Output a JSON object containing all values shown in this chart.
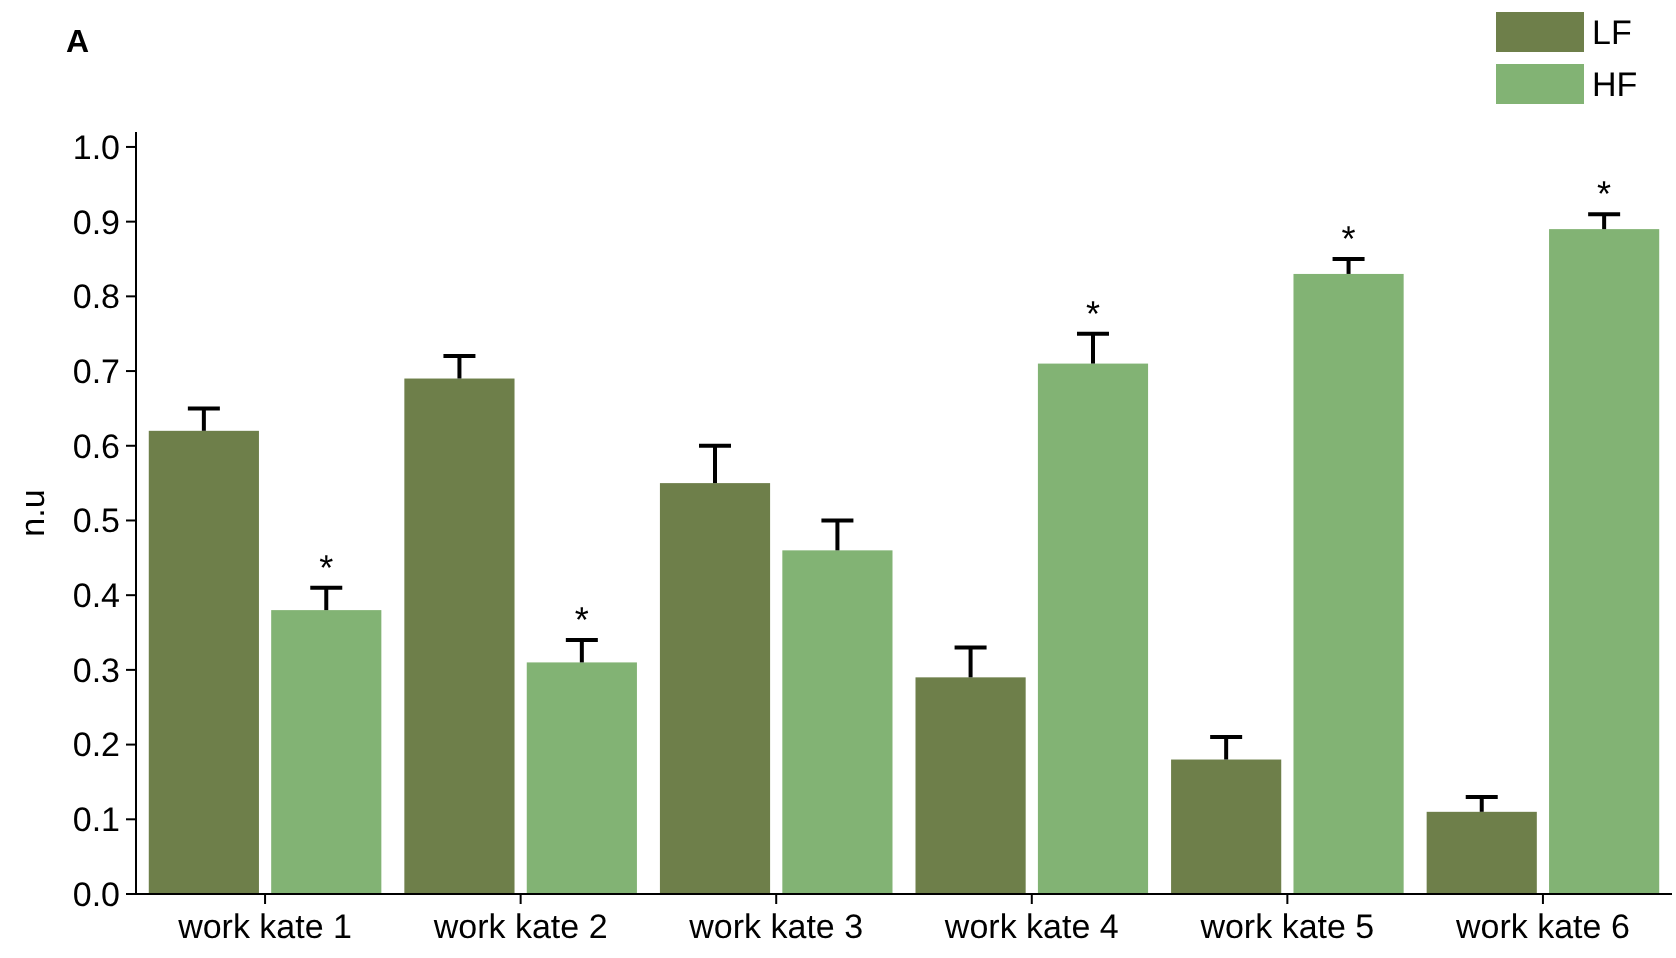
{
  "chart_data": {
    "type": "bar",
    "title": "A",
    "ylabel": "n.u",
    "categories": [
      "work kate 1",
      "work kate 2",
      "work kate 3",
      "work kate 4",
      "work kate 5",
      "work kate 6"
    ],
    "series": [
      {
        "name": "LF",
        "color": "#6e7f4a",
        "values": [
          0.62,
          0.69,
          0.55,
          0.29,
          0.18,
          0.11
        ],
        "errors": [
          0.03,
          0.03,
          0.05,
          0.04,
          0.03,
          0.02
        ]
      },
      {
        "name": "HF",
        "color": "#82b374",
        "values": [
          0.38,
          0.31,
          0.46,
          0.71,
          0.83,
          0.89
        ],
        "errors": [
          0.03,
          0.03,
          0.04,
          0.04,
          0.02,
          0.02
        ]
      }
    ],
    "ylim": [
      0,
      1.02
    ],
    "yticks": [
      {
        "value": 0,
        "label": "0.0"
      },
      0.1,
      0.2,
      0.3,
      0.4,
      0.5,
      0.6,
      0.7,
      0.8,
      0.9,
      {
        "value": 1,
        "label": "1.0"
      }
    ],
    "legend": "top right",
    "grid": false,
    "annotations": [
      {
        "text": "*",
        "x": "work kate 1",
        "y": 0.38
      },
      {
        "text": "*",
        "x": "work kate 2",
        "y": 0.31
      },
      {
        "text": "*",
        "x": "work kate 4",
        "y": 0.71
      },
      {
        "text": "*",
        "x": "work kate 5",
        "y": 0.83
      },
      {
        "text": "*",
        "x": "work kate 6",
        "y": 0.89
      }
    ]
  }
}
